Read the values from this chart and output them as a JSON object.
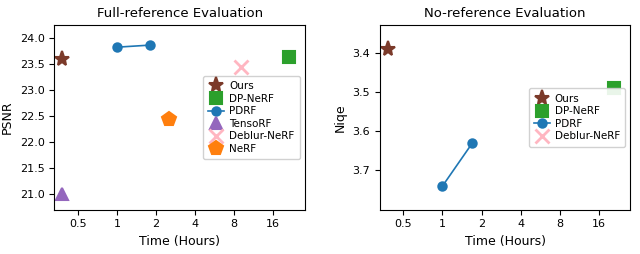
{
  "left_title": "Full-reference Evaluation",
  "right_title": "No-reference Evaluation",
  "left_xlabel": "Time (Hours)",
  "right_xlabel": "Time (Hours)",
  "left_ylabel": "PSNR",
  "right_ylabel": "Niqe",
  "left_xticks": [
    0.5,
    1,
    2,
    4,
    8,
    16
  ],
  "right_xticks": [
    0.5,
    1,
    2,
    4,
    8,
    16
  ],
  "left_xtick_labels": [
    "0.5",
    "1",
    "2",
    "4",
    "8",
    "16"
  ],
  "right_xtick_labels": [
    "0.5",
    "1",
    "2",
    "4",
    "8",
    "16"
  ],
  "left_xlim": [
    0.33,
    28
  ],
  "right_xlim": [
    0.33,
    28
  ],
  "left_ylim": [
    20.7,
    24.25
  ],
  "right_ylim": [
    3.8,
    3.33
  ],
  "left_yticks": [
    21.0,
    21.5,
    22.0,
    22.5,
    23.0,
    23.5,
    24.0
  ],
  "right_yticks": [
    3.4,
    3.5,
    3.6,
    3.7
  ],
  "series_left": [
    {
      "label": "Ours",
      "x": [
        0.38
      ],
      "y": [
        23.6
      ],
      "color": "#7B3A2A",
      "marker": "*",
      "markersize": 11,
      "linestyle": ""
    },
    {
      "label": "DP-NeRF",
      "x": [
        21.0
      ],
      "y": [
        23.65
      ],
      "color": "#2CA02C",
      "marker": "s",
      "markersize": 9,
      "linestyle": ""
    },
    {
      "label": "PDRF",
      "x": [
        1.0,
        1.8
      ],
      "y": [
        23.83,
        23.87
      ],
      "color": "#1F77B4",
      "marker": "o",
      "markersize": 6,
      "linestyle": "-"
    },
    {
      "label": "TensoRF",
      "x": [
        0.38
      ],
      "y": [
        21.0
      ],
      "color": "#9467BD",
      "marker": "^",
      "markersize": 9,
      "linestyle": ""
    },
    {
      "label": "Deblur-NeRF",
      "x": [
        9.0
      ],
      "y": [
        23.45
      ],
      "color": "#FFB6C1",
      "marker": "x",
      "markersize": 10,
      "linestyle": "",
      "markeredgewidth": 2.0
    },
    {
      "label": "NeRF",
      "x": [
        2.5
      ],
      "y": [
        22.45
      ],
      "color": "#FF7F0E",
      "marker": "p",
      "markersize": 10,
      "linestyle": ""
    }
  ],
  "series_right": [
    {
      "label": "Ours",
      "x": [
        0.38
      ],
      "y": [
        3.39
      ],
      "color": "#7B3A2A",
      "marker": "*",
      "markersize": 11,
      "linestyle": ""
    },
    {
      "label": "DP-NeRF",
      "x": [
        21.0
      ],
      "y": [
        3.49
      ],
      "color": "#2CA02C",
      "marker": "s",
      "markersize": 9,
      "linestyle": ""
    },
    {
      "label": "PDRF",
      "x": [
        1.0,
        1.7
      ],
      "y": [
        3.74,
        3.63
      ],
      "color": "#1F77B4",
      "marker": "o",
      "markersize": 6,
      "linestyle": "-"
    },
    {
      "label": "Deblur-NeRF",
      "x": [
        9.0
      ],
      "y": [
        3.58
      ],
      "color": "#FFB6C1",
      "marker": "x",
      "markersize": 10,
      "linestyle": "",
      "markeredgewidth": 2.0
    }
  ],
  "left_legend_loc": "center right",
  "right_legend_loc": "center right",
  "title_fontsize": 9.5,
  "label_fontsize": 9,
  "tick_fontsize": 8,
  "legend_fontsize": 7.5
}
